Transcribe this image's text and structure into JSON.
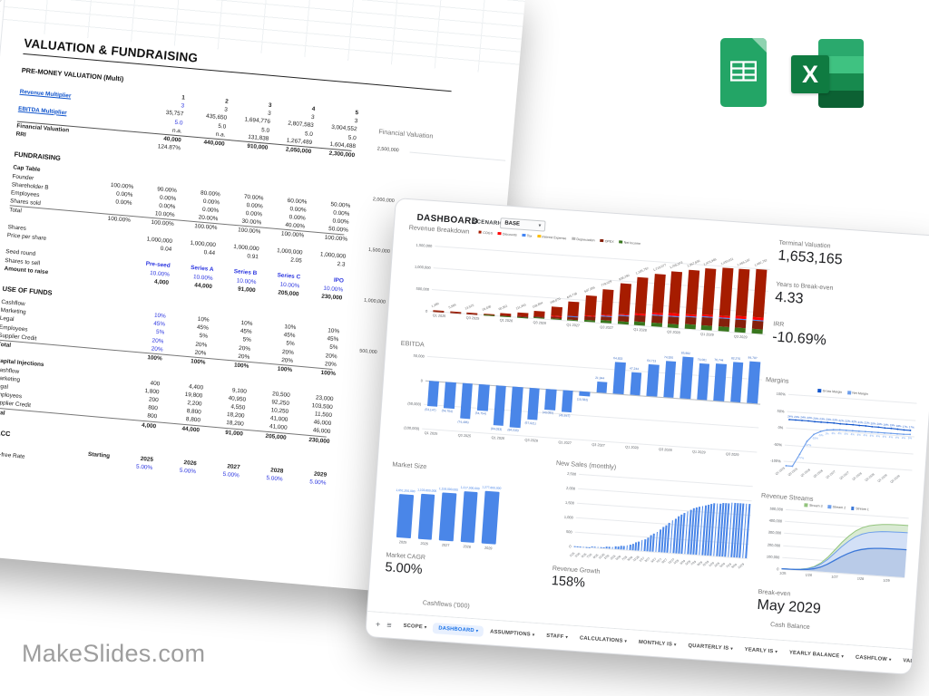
{
  "branding": {
    "logo": "MakeSlides.com"
  },
  "left_sheet": {
    "title": "VALUATION & FUNDRAISING",
    "sections": [
      {
        "heading": "PRE-MONEY VALUATION (Multi)",
        "header": [
          "",
          "1",
          "2",
          "3",
          "4",
          "5"
        ],
        "rows": [
          {
            "label": "Revenue Multiplier",
            "lcls": "link",
            "cells": [
              "",
              "3",
              "3",
              "3",
              "3",
              "3"
            ],
            "ccls": "blue-first"
          },
          {
            "cells": [
              "",
              "35,757",
              "435,650",
              "1,694,776",
              "2,807,583",
              "3,004,552"
            ]
          },
          {
            "label": "EBITDA Multiplier",
            "lcls": "link",
            "cells": [
              "",
              "5.0",
              "5.0",
              "5.0",
              "5.0",
              "5.0"
            ],
            "ccls": "blue-first"
          },
          {
            "cells": [
              "",
              "n.a.",
              "n.a.",
              "131,838",
              "1,267,489",
              "1,604,488"
            ]
          },
          {
            "label": "Financial Valuation",
            "lcls": "b",
            "cls": "topline",
            "cells": [
              "",
              "40,000",
              "440,000",
              "910,000",
              "2,050,000",
              "2,300,000"
            ],
            "ccls": "bold"
          },
          {
            "label": "RRI",
            "lcls": "b",
            "cells": [
              "",
              "124.87%",
              "",
              "",
              "",
              ""
            ]
          }
        ]
      },
      {
        "heading": "FUNDRAISING",
        "rows": [
          {
            "label": "Cap Table",
            "lcls": "b",
            "cells": []
          },
          {
            "label": "Founder",
            "cells": [
              "100.00%",
              "90.00%",
              "80.00%",
              "70.00%",
              "60.00%",
              "50.00%"
            ]
          },
          {
            "label": "Shareholder B",
            "cells": [
              "0.00%",
              "0.00%",
              "0.00%",
              "0.00%",
              "0.00%",
              "0.00%"
            ]
          },
          {
            "label": "Employees",
            "cells": [
              "0.00%",
              "0.00%",
              "0.00%",
              "0.00%",
              "0.00%",
              "0.00%"
            ]
          },
          {
            "label": "Shares sold",
            "cls": "underline",
            "cells": [
              "",
              "10.00%",
              "20.00%",
              "30.00%",
              "40.00%",
              "50.00%"
            ]
          },
          {
            "label": "Total",
            "cells": [
              "100.00%",
              "100.00%",
              "100.00%",
              "100.00%",
              "100.00%",
              "100.00%"
            ]
          },
          {
            "cells": []
          },
          {
            "label": "Shares",
            "cells": [
              "",
              "1,000,000",
              "1,000,000",
              "1,000,000",
              "1,000,000",
              "1,000,000"
            ]
          },
          {
            "label": "Price per share",
            "cells": [
              "",
              "0.04",
              "0.44",
              "0.91",
              "2.05",
              "2.3"
            ]
          },
          {
            "cells": []
          },
          {
            "label": "Seed round",
            "cells": [
              "",
              "Pre-seed",
              "Series A",
              "Series B",
              "Series C",
              "IPO"
            ],
            "ccls": "blue bold"
          },
          {
            "label": "Shares to sell",
            "cells": [
              "",
              "10.00%",
              "10.00%",
              "10.00%",
              "10.00%",
              "10.00%"
            ],
            "ccls": "blue"
          },
          {
            "label": "Amount to raise",
            "lcls": "b",
            "cells": [
              "",
              "4,000",
              "44,000",
              "91,000",
              "205,000",
              "230,000"
            ],
            "ccls": "bold"
          }
        ]
      },
      {
        "heading": "USE OF FUNDS",
        "rows": [
          {
            "label": "Cashflow",
            "cells": [
              "",
              "10%",
              "10%",
              "10%",
              "10%",
              "10%"
            ],
            "ccls": "blue-first"
          },
          {
            "label": "Marketing",
            "cells": [
              "",
              "45%",
              "45%",
              "45%",
              "45%",
              "45%"
            ],
            "ccls": "blue-first"
          },
          {
            "label": "Legal",
            "cells": [
              "",
              "5%",
              "5%",
              "5%",
              "5%",
              "5%"
            ],
            "ccls": "blue-first"
          },
          {
            "label": "Employees",
            "cells": [
              "",
              "20%",
              "20%",
              "20%",
              "20%",
              "20%"
            ],
            "ccls": "blue-first"
          },
          {
            "label": "Supplier Credit",
            "cls": "underline",
            "cells": [
              "",
              "20%",
              "20%",
              "20%",
              "20%",
              "20%"
            ],
            "ccls": "blue-first"
          },
          {
            "label": "Total",
            "lcls": "b",
            "cells": [
              "",
              "100%",
              "100%",
              "100%",
              "100%",
              "100%"
            ],
            "ccls": "bold"
          },
          {
            "cells": []
          },
          {
            "label": "Capital Injections",
            "lcls": "b",
            "cells": []
          },
          {
            "label": "Cashflow",
            "cells": [
              "",
              "400",
              "4,400",
              "9,100",
              "20,500",
              "23,000"
            ]
          },
          {
            "label": "Marketing",
            "cells": [
              "",
              "1,800",
              "19,800",
              "40,950",
              "92,250",
              "103,500"
            ]
          },
          {
            "label": "Legal",
            "cells": [
              "",
              "200",
              "2,200",
              "4,550",
              "10,250",
              "11,500"
            ]
          },
          {
            "label": "Employees",
            "cells": [
              "",
              "800",
              "8,800",
              "18,200",
              "41,000",
              "46,000"
            ]
          },
          {
            "label": "Supplier Credit",
            "cls": "underline",
            "cells": [
              "",
              "800",
              "8,800",
              "18,200",
              "41,000",
              "46,000"
            ]
          },
          {
            "label": "Total",
            "lcls": "b",
            "cells": [
              "",
              "4,000",
              "44,000",
              "91,000",
              "205,000",
              "230,000"
            ],
            "ccls": "bold"
          }
        ]
      },
      {
        "heading": "WACC",
        "rows": [
          {
            "cells": [
              "Starting",
              "2025",
              "2026",
              "2027",
              "2028",
              "2029"
            ],
            "ccls": "bold"
          },
          {
            "label": "Risk-free Rate",
            "cells": [
              "",
              "5.00%",
              "5.00%",
              "5.00%",
              "5.00%",
              "5.00%"
            ],
            "ccls": "blue"
          }
        ]
      }
    ]
  },
  "dashboard": {
    "title": "DASHBOARD",
    "scenario_label": "SCENARIO",
    "scenario_value": "BASE",
    "stats": [
      {
        "label": "Terminal Valuation",
        "value": "1,653,165"
      },
      {
        "label": "Years to Break-even",
        "value": "4.33"
      },
      {
        "label": "IRR",
        "value": "-10.69%"
      },
      {
        "label": "Market CAGR",
        "value": "5.00%"
      },
      {
        "label": "Revenue Growth",
        "value": "158%"
      },
      {
        "label": "Break-even",
        "value": "May 2029"
      }
    ],
    "bottom_left_label": "Cashflows ('000)",
    "bottom_right_label": "Cash Balance",
    "tabs": [
      {
        "label": "SCOPE"
      },
      {
        "label": "DASHBOARD",
        "active": true
      },
      {
        "label": "ASSUMPTIONS"
      },
      {
        "label": "STAFF"
      },
      {
        "label": "CALCULATIONS"
      },
      {
        "label": "MONTHLY IS"
      },
      {
        "label": "QUARTERLY IS"
      },
      {
        "label": "YEARLY IS"
      },
      {
        "label": "YEARLY BALANCE"
      },
      {
        "label": "CASHFLOW"
      },
      {
        "label": "VALUATION"
      }
    ]
  },
  "chart_data": [
    {
      "id": "financial-valuation",
      "type": "line",
      "title": "Financial Valuation",
      "ylabels": [
        "2,500,000",
        "2,000,000",
        "1,500,000",
        "1,000,000",
        "500,000"
      ]
    },
    {
      "id": "revenue-breakdown",
      "type": "bar-stacked",
      "title": "Revenue Breakdown",
      "categories": [
        "Q1 2025",
        "Q2 2025",
        "Q3 2025",
        "Q4 2025",
        "Q1 2026",
        "Q2 2026",
        "Q3 2026",
        "Q4 2026",
        "Q1 2027",
        "Q2 2027",
        "Q3 2027",
        "Q4 2027",
        "Q1 2028",
        "Q2 2028",
        "Q3 2028",
        "Q4 2028",
        "Q1 2029",
        "Q2 2029",
        "Q3 2029",
        "Q4 2029"
      ],
      "totals": [
        1389,
        5569,
        13525,
        29636,
        60561,
        111343,
        169894,
        298670,
        445736,
        607356,
        779029,
        938290,
        1105752,
        1215077,
        1295373,
        1357630,
        1423966,
        1450011,
        1466102,
        1482752
      ],
      "labels": [
        "1,389",
        "5,569",
        "13,525",
        "29,636",
        "60,561",
        "111,343",
        "169,894",
        "298,670",
        "445,736",
        "607,356",
        "779,029",
        "938,290",
        "1,105,752",
        "1,215,077",
        "1,295,373",
        "1,357,630",
        "1,423,966",
        "1,450,011",
        "1,466,102",
        "1,482,752"
      ],
      "legend": [
        {
          "name": "COGS",
          "color": "#a61c00"
        },
        {
          "name": "Discounts",
          "color": "#ff0000"
        },
        {
          "name": "Tax",
          "color": "#4285f4"
        },
        {
          "name": "Interest Expense",
          "color": "#fbbc04"
        },
        {
          "name": "Depreciation",
          "color": "#b7b7b7"
        },
        {
          "name": "OPEX",
          "color": "#85200c"
        },
        {
          "name": "Net Income",
          "color": "#38761d"
        }
      ],
      "stack": [
        {
          "c": "#38761d",
          "f": 0.07
        },
        {
          "c": "#85200c",
          "f": 0.13
        },
        {
          "c": "#4285f4",
          "f": 0.015
        },
        {
          "c": "#ff0000",
          "f": 0.035
        },
        {
          "c": "#a61c00",
          "f": 0.75
        }
      ],
      "ylabels": [
        "1,500,000",
        "1,000,000",
        "500,000",
        "0"
      ],
      "ymax": 1500000,
      "xticks": [
        "Q1 2025",
        "Q3 2025",
        "Q1 2026",
        "Q3 2026",
        "Q1 2027",
        "Q3 2027",
        "Q1 2028",
        "Q3 2028",
        "Q1 2029",
        "Q3 2029"
      ]
    },
    {
      "id": "ebitda",
      "type": "bar",
      "title": "EBITDA",
      "values": [
        -53147,
        -54704,
        -74486,
        -54754,
        -84033,
        -84533,
        -67021,
        -43095,
        -45647,
        -10582,
        21944,
        64833,
        47244,
        64713,
        74920,
        85882,
        74081,
        76744,
        82270,
        84787
      ],
      "labels": [
        "(53,147)",
        "(54,704)",
        "(74,486)",
        "(54,754)",
        "(84,033)",
        "(84,533)",
        "(67,021)",
        "(43,095)",
        "(45,647)",
        "(10,582)",
        "21,944",
        "64,833",
        "47,244",
        "64,713",
        "74,920",
        "85,882",
        "74,081",
        "76,744",
        "82,270",
        "84,787"
      ],
      "ylabels": [
        "50,000",
        "0",
        "(50,000)",
        "(100,000)"
      ],
      "ymax": 50000,
      "ymin": -100000,
      "color": "#4a86e8",
      "xticks": [
        "Q1 2025",
        "Q3 2025",
        "Q1 2026",
        "Q3 2026",
        "Q1 2027",
        "Q3 2027",
        "Q1 2028",
        "Q3 2028",
        "Q1 2029",
        "Q3 2029"
      ]
    },
    {
      "id": "margins",
      "type": "line-multi",
      "title": "Margins",
      "series": [
        {
          "name": "Gross Margin",
          "color": "#1155cc",
          "values": [
            24,
            24,
            24,
            24,
            23,
            23,
            23,
            23,
            22,
            22,
            22,
            21,
            21,
            20,
            20,
            19,
            19,
            18,
            17,
            17
          ]
        },
        {
          "name": "Net Margin",
          "color": "#6d9eeb",
          "values": [
            -185,
            -130,
            -77,
            -37,
            -15,
            -5,
            1,
            3,
            4,
            4,
            4,
            4,
            4,
            4,
            4,
            4,
            4,
            4,
            4,
            5
          ]
        }
      ],
      "ylabels": [
        "100%",
        "50%",
        "0%",
        "-50%",
        "-100%"
      ],
      "ymax": 100,
      "ymin": -100,
      "xticks": [
        "Q1 2025",
        "Q3 2025",
        "Q1 2026",
        "Q3 2026",
        "Q1 2027",
        "Q3 2027",
        "Q1 2028",
        "Q3 2028",
        "Q1 2029",
        "Q3 2029"
      ]
    },
    {
      "id": "market-size",
      "type": "bar",
      "title": "Market Size",
      "categories": [
        "2025",
        "2026",
        "2027",
        "2028",
        "2029"
      ],
      "values": [
        1051250000,
        1103800000,
        1159000000,
        1217000000,
        1277800000
      ],
      "labels": [
        "1,051,250,000",
        "1,103,800,000",
        "1,159,000,000",
        "1,217,000,000",
        "1,277,800,000"
      ],
      "ymax": 1400000000,
      "color": "#4a86e8"
    },
    {
      "id": "new-sales",
      "type": "bar-dense",
      "title": "New Sales (monthly)",
      "ymax": 2500,
      "color": "#4a86e8",
      "ylabels": [
        "2,500",
        "2,000",
        "1,500",
        "1,000",
        "500",
        "0"
      ],
      "values": [
        7,
        9,
        10,
        12,
        15,
        17,
        21,
        25,
        30,
        36,
        42,
        51,
        60,
        72,
        85,
        101,
        120,
        141,
        167,
        196,
        231,
        270,
        314,
        364,
        420,
        482,
        549,
        622,
        700,
        781,
        865,
        950,
        1035,
        1119,
        1200,
        1278,
        1351,
        1418,
        1480,
        1536,
        1586,
        1630,
        1669,
        1704,
        1733,
        1758,
        1780,
        1799,
        1815,
        1828,
        1840,
        1849,
        1858,
        1864,
        1870,
        1875,
        1879,
        1882,
        1885,
        1888
      ],
      "xticks": [
        "1/25",
        "3/25",
        "5/25",
        "7/25",
        "9/25",
        "11/25",
        "1/26",
        "3/26",
        "5/26",
        "7/26",
        "9/26",
        "11/26",
        "1/27",
        "3/27",
        "5/27",
        "7/27",
        "9/27",
        "11/27",
        "1/28",
        "3/28",
        "5/28",
        "7/28",
        "9/28",
        "11/28",
        "1/29",
        "3/29",
        "5/29",
        "7/29",
        "9/29",
        "11/29"
      ]
    },
    {
      "id": "revenue-streams",
      "type": "area-stacked",
      "title": "Revenue Streams",
      "ymax": 500000,
      "ylabels": [
        "500,000",
        "400,000",
        "300,000",
        "200,000",
        "100,000",
        "0"
      ],
      "xticks": [
        "1/25",
        "1/26",
        "1/27",
        "1/28",
        "1/29"
      ],
      "legend": [
        {
          "name": "Stream 3",
          "color": "#93c47d"
        },
        {
          "name": "Stream 2",
          "color": "#6d9eeb"
        },
        {
          "name": "Stream 1",
          "color": "#3c78d8"
        }
      ],
      "series": [
        {
          "name": "Stream 1",
          "color": "#3c78d8",
          "fill": "#b9cbe8",
          "values": [
            800,
            1200,
            2500,
            5000,
            10000,
            20000,
            38000,
            65000,
            100000,
            135000,
            165000,
            190000,
            207000,
            218000,
            224000,
            228000,
            230000,
            231000,
            232000,
            232000
          ]
        },
        {
          "name": "Stream 2",
          "color": "#6d9eeb",
          "fill": "#d3e0f6",
          "values": [
            500,
            800,
            1600,
            3200,
            6400,
            12800,
            24000,
            41000,
            63000,
            85000,
            104000,
            119000,
            129000,
            135000,
            138000,
            140000,
            141000,
            142000,
            142000,
            142000
          ]
        },
        {
          "name": "Stream 3",
          "color": "#93c47d",
          "fill": "#d9ead3",
          "values": [
            200,
            350,
            700,
            1400,
            2800,
            5600,
            10500,
            18000,
            27500,
            37000,
            45000,
            51000,
            55000,
            57500,
            59000,
            60000,
            60500,
            61000,
            61000,
            61000
          ]
        }
      ]
    }
  ]
}
